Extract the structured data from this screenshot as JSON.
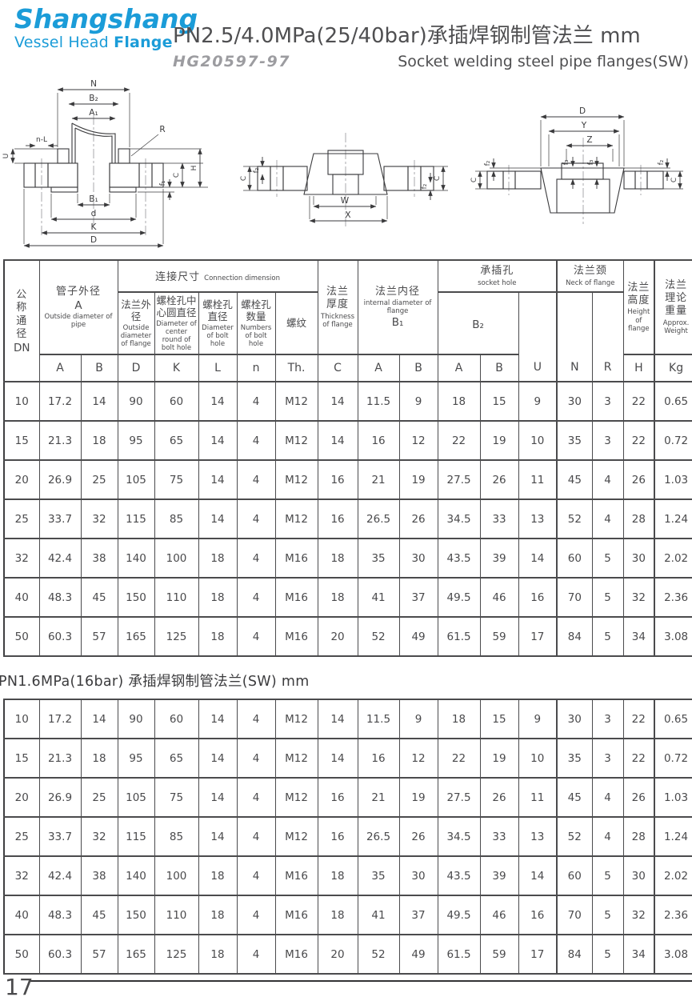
{
  "brand": {
    "name": "Shangshang",
    "sub1": "Vessel Head",
    "sub2": "Flange",
    "color": "#1b9cd8"
  },
  "header": {
    "title": "PN2.5/4.0MPa(25/40bar)承插焊钢制管法兰 mm",
    "standard": "HG20597-97",
    "subtitle_en": "Socket welding steel pipe flanges(SW)"
  },
  "drawings": {
    "d1": {
      "labels": [
        "N",
        "B₂",
        "A₁",
        "n-L",
        "U",
        "R",
        "C",
        "H",
        "f₁",
        "B₁",
        "d",
        "K",
        "D"
      ]
    },
    "d2": {
      "labels": [
        "C",
        "f₂",
        "W",
        "X",
        "f₂",
        "C"
      ]
    },
    "d3": {
      "labels": [
        "D",
        "Y",
        "Z",
        "f₂",
        "C",
        "f₃",
        "f₃",
        "f₂",
        "C"
      ]
    }
  },
  "table": {
    "groups": {
      "dn": {
        "zh": "公称通径",
        "code": "DN"
      },
      "pipe_od": {
        "zh": "管子外径",
        "code": "A",
        "en": "Outside diameter of pipe"
      },
      "connection": {
        "zh": "连接尺寸",
        "en": "Connection dimension"
      },
      "flange_od": {
        "zh": "法兰外径",
        "en": "Outside diameter of flange"
      },
      "bolt_circle": {
        "zh": "螺栓孔中心圆直径",
        "en": "Diameter of center round of bolt hole"
      },
      "bolt_dia": {
        "zh": "螺栓孔直径",
        "en": "Diameter of bolt hole"
      },
      "bolt_num": {
        "zh": "螺栓孔数量",
        "en": "Numbers of bolt hole"
      },
      "thread": {
        "zh": "螺纹"
      },
      "thickness": {
        "zh": "法兰厚度",
        "en": "Thickness of flange"
      },
      "bore": {
        "zh": "法兰内径",
        "en": "internal diameter of flange",
        "code": "B₁"
      },
      "socket": {
        "zh": "承插孔",
        "en": "socket hole",
        "code": "B₂"
      },
      "neck": {
        "zh": "法兰颈",
        "en": "Neck of flange"
      },
      "height": {
        "zh": "法兰高度",
        "en": "Height of flange"
      },
      "weight": {
        "zh": "法兰理论重量",
        "en": "Approx. Weight"
      }
    },
    "letters": [
      "A",
      "B",
      "D",
      "K",
      "L",
      "n",
      "Th.",
      "C",
      "A",
      "B",
      "A",
      "B",
      "U",
      "N",
      "R",
      "H",
      "Kg"
    ],
    "rows": [
      [
        "10",
        "17.2",
        "14",
        "90",
        "60",
        "14",
        "4",
        "M12",
        "14",
        "11.5",
        "9",
        "18",
        "15",
        "9",
        "30",
        "3",
        "22",
        "0.65"
      ],
      [
        "15",
        "21.3",
        "18",
        "95",
        "65",
        "14",
        "4",
        "M12",
        "14",
        "16",
        "12",
        "22",
        "19",
        "10",
        "35",
        "3",
        "22",
        "0.72"
      ],
      [
        "20",
        "26.9",
        "25",
        "105",
        "75",
        "14",
        "4",
        "M12",
        "16",
        "21",
        "19",
        "27.5",
        "26",
        "11",
        "45",
        "4",
        "26",
        "1.03"
      ],
      [
        "25",
        "33.7",
        "32",
        "115",
        "85",
        "14",
        "4",
        "M12",
        "16",
        "26.5",
        "26",
        "34.5",
        "33",
        "13",
        "52",
        "4",
        "28",
        "1.24"
      ],
      [
        "32",
        "42.4",
        "38",
        "140",
        "100",
        "18",
        "4",
        "M16",
        "18",
        "35",
        "30",
        "43.5",
        "39",
        "14",
        "60",
        "5",
        "30",
        "2.02"
      ],
      [
        "40",
        "48.3",
        "45",
        "150",
        "110",
        "18",
        "4",
        "M16",
        "18",
        "41",
        "37",
        "49.5",
        "46",
        "16",
        "70",
        "5",
        "32",
        "2.36"
      ],
      [
        "50",
        "60.3",
        "57",
        "165",
        "125",
        "18",
        "4",
        "M16",
        "20",
        "52",
        "49",
        "61.5",
        "59",
        "17",
        "84",
        "5",
        "34",
        "3.08"
      ]
    ]
  },
  "section2": {
    "title": "PN1.6MPa(16bar) 承插焊钢制管法兰(SW)  mm"
  },
  "footer": {
    "page_number": "17"
  }
}
